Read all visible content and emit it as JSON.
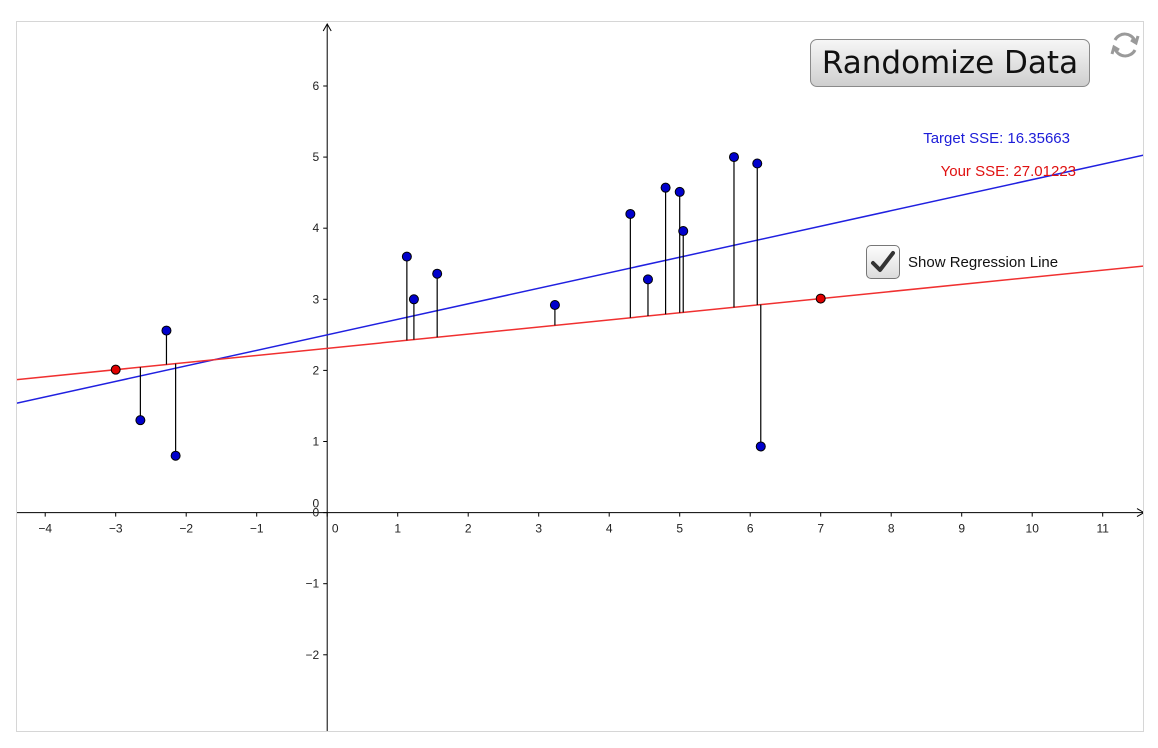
{
  "toolbar": {
    "randomize_label": "Randomize Data",
    "refresh_icon": "refresh-icon"
  },
  "stats": {
    "target_sse": "Target SSE: 16.35663",
    "your_sse": "Your SSE: 27.01223"
  },
  "toggle": {
    "label": "Show Regression Line",
    "checked": true
  },
  "colors": {
    "regression_line": "#2020e0",
    "user_line": "#f03030",
    "points": "#0000cc",
    "control_points": "#e00000",
    "residuals": "#000000",
    "axes": "#000000"
  },
  "chart_data": {
    "type": "scatter",
    "xlim": [
      -4.4,
      11.6
    ],
    "ylim": [
      -3.1,
      6.9
    ],
    "x_ticks": [
      -4,
      -3,
      -2,
      -1,
      0,
      1,
      2,
      3,
      4,
      5,
      6,
      7,
      8,
      9,
      10,
      11
    ],
    "y_ticks": [
      -2,
      -1,
      0,
      1,
      2,
      3,
      4,
      5,
      6
    ],
    "points": [
      {
        "x": -2.65,
        "y": 1.3
      },
      {
        "x": -2.28,
        "y": 2.56
      },
      {
        "x": -2.15,
        "y": 0.8
      },
      {
        "x": 1.13,
        "y": 3.6
      },
      {
        "x": 1.23,
        "y": 3.0
      },
      {
        "x": 1.56,
        "y": 3.36
      },
      {
        "x": 3.23,
        "y": 2.92
      },
      {
        "x": 4.3,
        "y": 4.2
      },
      {
        "x": 4.55,
        "y": 3.28
      },
      {
        "x": 4.8,
        "y": 4.57
      },
      {
        "x": 5.0,
        "y": 4.51
      },
      {
        "x": 5.05,
        "y": 3.96
      },
      {
        "x": 5.77,
        "y": 5.0
      },
      {
        "x": 6.1,
        "y": 4.91
      },
      {
        "x": 6.15,
        "y": 0.93
      }
    ],
    "regression_line": {
      "slope": 0.2183,
      "intercept": 2.5
    },
    "user_line": {
      "x1": -3.0,
      "y1": 2.01,
      "x2": 7.0,
      "y2": 3.01
    },
    "grid": false
  }
}
